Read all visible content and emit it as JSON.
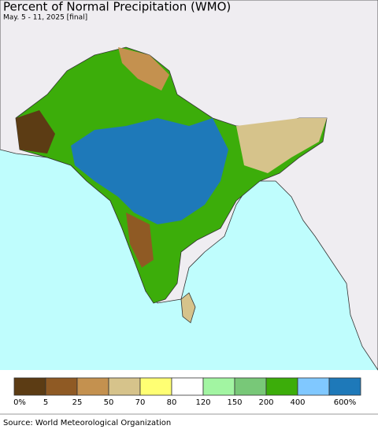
{
  "header": {
    "title": "Percent of Normal Precipitation (WMO)",
    "subtitle": "May. 5 - 11, 2025 [final]"
  },
  "legend": {
    "items": [
      {
        "color": "#5c3c14",
        "label": "0%"
      },
      {
        "color": "#8f5a24",
        "label": "5"
      },
      {
        "color": "#c4914f",
        "label": "25"
      },
      {
        "color": "#d6c38b",
        "label": "50"
      },
      {
        "color": "#ffff73",
        "label": "70"
      },
      {
        "color": "#ffffff",
        "label": "80"
      },
      {
        "color": "#a2f5a2",
        "label": "120"
      },
      {
        "color": "#78c878",
        "label": "150"
      },
      {
        "color": "#3cad0a",
        "label": "200"
      },
      {
        "color": "#80c8ff",
        "label": "400"
      },
      {
        "color": "#1e79b9",
        "label": "600%"
      }
    ]
  },
  "footer": {
    "source": "Source: World Meteorological Organization"
  }
}
